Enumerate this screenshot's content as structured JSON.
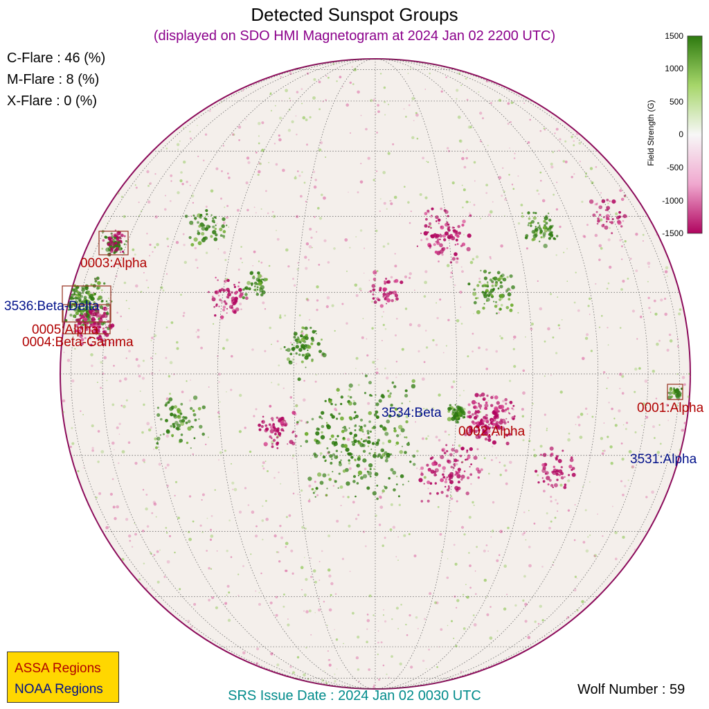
{
  "title": "Detected Sunspot Groups",
  "subtitle": "(displayed on SDO HMI Magnetogram at 2024 Jan 02 2200 UTC)",
  "flares": [
    {
      "label": "C-Flare : 46 (%)"
    },
    {
      "label": "M-Flare :  8 (%)"
    },
    {
      "label": "X-Flare :  0 (%)"
    }
  ],
  "colorbar": {
    "title": "Field Strength (G)",
    "ticks": [
      "1500",
      "1000",
      "500",
      "0",
      "-500",
      "-1000",
      "-1500"
    ],
    "range": [
      -1500,
      1500
    ],
    "colors": {
      "positive": "#2d7a0f",
      "negative": "#b0045f",
      "zero": "#f7f1ee"
    }
  },
  "legend": {
    "assa_label": "ASSA Regions",
    "noaa_label": "NOAA Regions",
    "assa_color": "#b00000",
    "noaa_color": "#00108a",
    "box_color": "#ffd700"
  },
  "regions": {
    "r0003": "0003:Alpha",
    "r3536": "3536:Beta-Delta",
    "r0005": "0005:Alpha",
    "r0004": "0004:Beta-Gamma",
    "r3534": "3534:Beta",
    "r0002": "0002:Alpha",
    "r0001": "0001:Alpha",
    "r3531": "3531:Alpha"
  },
  "srs_issue": "SRS Issue Date : 2024 Jan 02 0030 UTC",
  "wolf_number": "Wolf Number : 59",
  "colors": {
    "subtitle": "#8b008b",
    "srs": "#008b8b",
    "disk_bg": "#f4efeb",
    "grid": "#555555"
  }
}
